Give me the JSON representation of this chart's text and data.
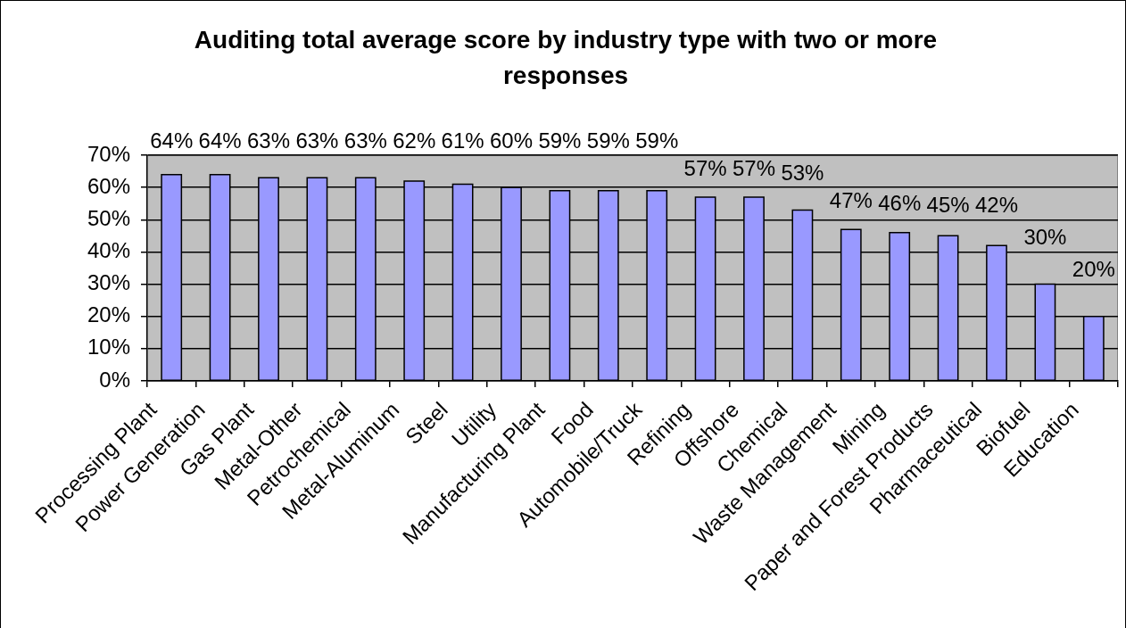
{
  "chart_data": {
    "type": "bar",
    "title": "Auditing total average score by industry type with two or more responses",
    "categories": [
      "Processing Plant",
      "Power Generation",
      "Gas Plant",
      "Metal-Other",
      "Petrochemical",
      "Metal-Aluminum",
      "Steel",
      "Utility",
      "Manufacturing Plant",
      "Food",
      "Automobile/Truck",
      "Refining",
      "Offshore",
      "Chemical",
      "Waste Management",
      "Mining",
      "Paper and Forest Products",
      "Pharmaceutical",
      "Biofuel",
      "Education"
    ],
    "values": [
      64,
      64,
      63,
      63,
      63,
      62,
      61,
      60,
      59,
      59,
      59,
      57,
      57,
      53,
      47,
      46,
      45,
      42,
      30,
      20
    ],
    "value_labels": [
      "64%",
      "64%",
      "63%",
      "63%",
      "63%",
      "62%",
      "61%",
      "60%",
      "59%",
      "59%",
      "59%",
      "57%",
      "57%",
      "53%",
      "47%",
      "46%",
      "45%",
      "42%",
      "30%",
      "20%"
    ],
    "color": "#9999ff",
    "ylim": [
      0,
      70
    ],
    "yticks": [
      {
        "value": 0,
        "label": "0%"
      },
      {
        "value": 10,
        "label": "10%"
      },
      {
        "value": 20,
        "label": "20%"
      },
      {
        "value": 30,
        "label": "30%"
      },
      {
        "value": 40,
        "label": "40%"
      },
      {
        "value": 50,
        "label": "50%"
      },
      {
        "value": 60,
        "label": "60%"
      },
      {
        "value": 70,
        "label": "70%"
      }
    ],
    "grid": "y"
  }
}
